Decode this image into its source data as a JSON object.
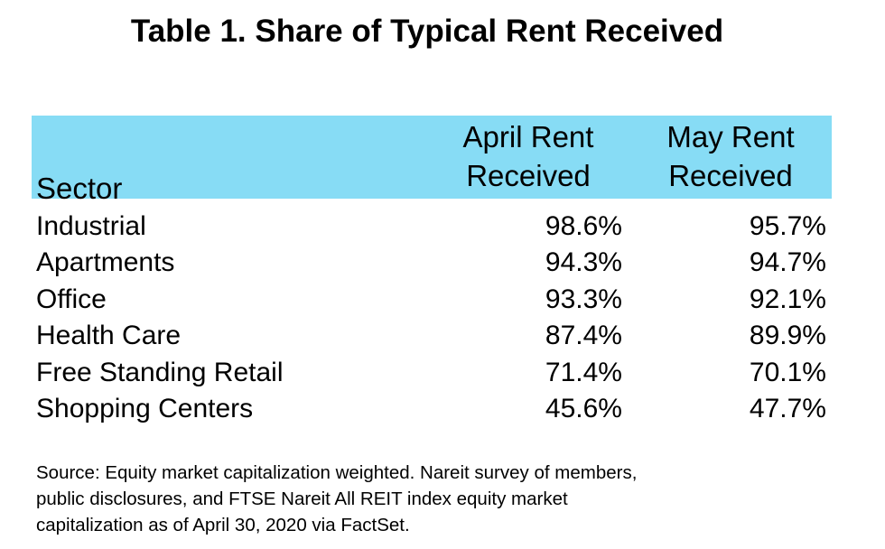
{
  "title": "Table 1. Share of Typical Rent Received",
  "table": {
    "headers": {
      "sector": "Sector",
      "april_line1": "April Rent",
      "april_line2": "Received",
      "may_line1": "May Rent",
      "may_line2": "Received"
    },
    "header_background": "#87dcf5",
    "rows": [
      {
        "sector": "Industrial",
        "april": "98.6%",
        "may": "95.7%"
      },
      {
        "sector": "Apartments",
        "april": "94.3%",
        "may": "94.7%"
      },
      {
        "sector": "Office",
        "april": "93.3%",
        "may": "92.1%"
      },
      {
        "sector": "Health Care",
        "april": "87.4%",
        "may": "89.9%"
      },
      {
        "sector": "Free Standing Retail",
        "april": "71.4%",
        "may": "70.1%"
      },
      {
        "sector": "Shopping Centers",
        "april": "45.6%",
        "may": "47.7%"
      }
    ]
  },
  "source": {
    "line1": "Source: Equity market capitalization weighted. Nareit survey of members,",
    "line2": "public disclosures, and FTSE Nareit All REIT index equity market",
    "line3": "capitalization as of April 30, 2020 via FactSet."
  }
}
